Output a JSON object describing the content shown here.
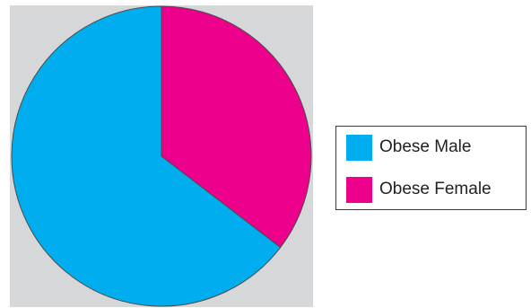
{
  "chart_data": {
    "type": "pie",
    "categories": [
      "Obese Male",
      "Obese Female"
    ],
    "values": [
      64.6,
      35.4
    ],
    "unit": "%",
    "title": "",
    "colors": [
      "#00aeef",
      "#ec008c"
    ],
    "start_angle_deg": 0,
    "direction": "clockwise",
    "background": "#d6d7d9",
    "legend": {
      "position": "right",
      "items": [
        {
          "label": "Obese Male",
          "color": "#00aeef"
        },
        {
          "label": "Obese Female",
          "color": "#ec008c"
        }
      ]
    }
  }
}
